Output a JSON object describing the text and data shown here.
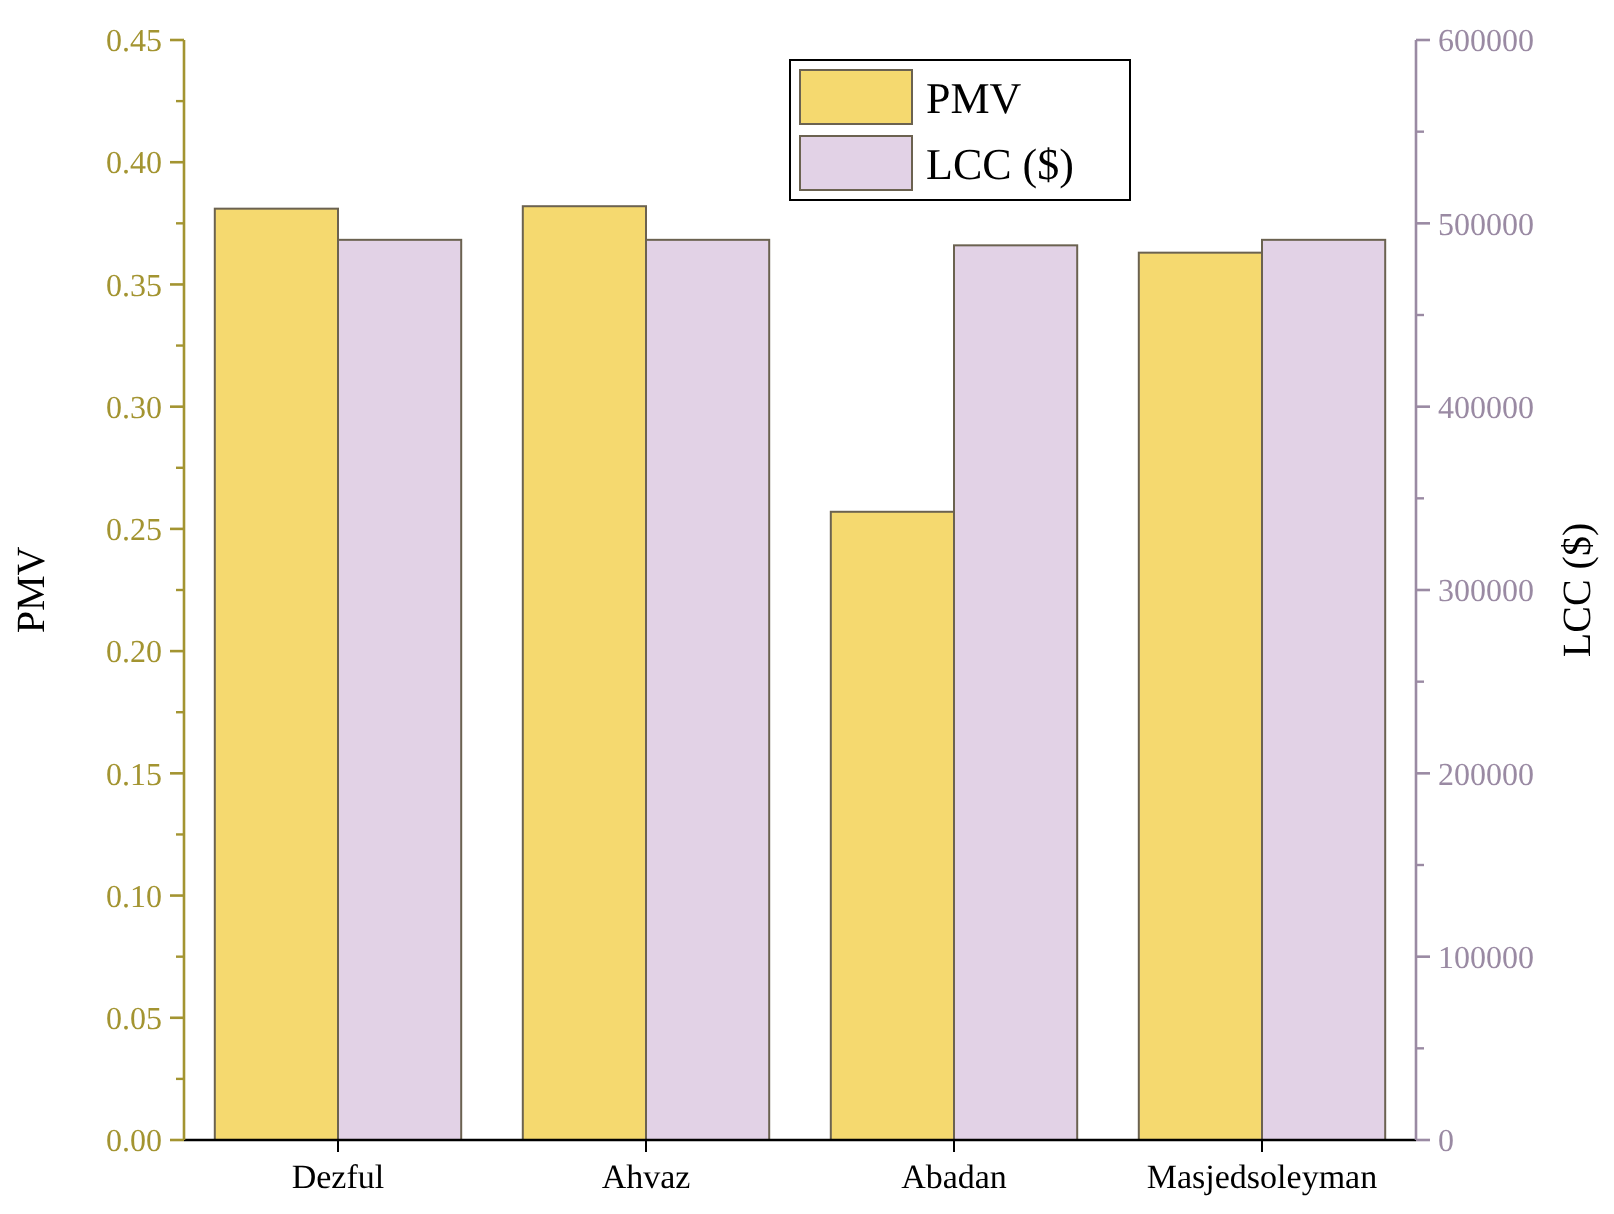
{
  "chart_data": {
    "type": "bar",
    "ylabel": "PMV",
    "y2label": "LCC ($)",
    "categories": [
      "Dezful",
      "Ahvaz",
      "Abadan",
      "Masjedsoleyman"
    ],
    "series": [
      {
        "name": "PMV",
        "color": "#f5d96f",
        "values": [
          0.381,
          0.382,
          0.257,
          0.363
        ]
      },
      {
        "name": "LCC ($)",
        "color": "#e2d2e6",
        "axis": "y2",
        "values": [
          491000,
          491000,
          488000,
          491000
        ]
      }
    ],
    "ylim": [
      0,
      0.45
    ],
    "yticks": [
      {
        "value": 0,
        "label": "0.00"
      },
      {
        "value": 0.05,
        "label": "0.05"
      },
      {
        "value": 0.1,
        "label": "0.10"
      },
      {
        "value": 0.15,
        "label": "0.15"
      },
      {
        "value": 0.2,
        "label": "0.20"
      },
      {
        "value": 0.25,
        "label": "0.25"
      },
      {
        "value": 0.3,
        "label": "0.30"
      },
      {
        "value": 0.35,
        "label": "0.35"
      },
      {
        "value": 0.4,
        "label": "0.40"
      },
      {
        "value": 0.45,
        "label": "0.45"
      }
    ],
    "y2lim": [
      0,
      600000
    ],
    "y2ticks": [
      0,
      100000,
      200000,
      300000,
      400000,
      500000,
      600000
    ],
    "legend": "top",
    "grid": false
  }
}
